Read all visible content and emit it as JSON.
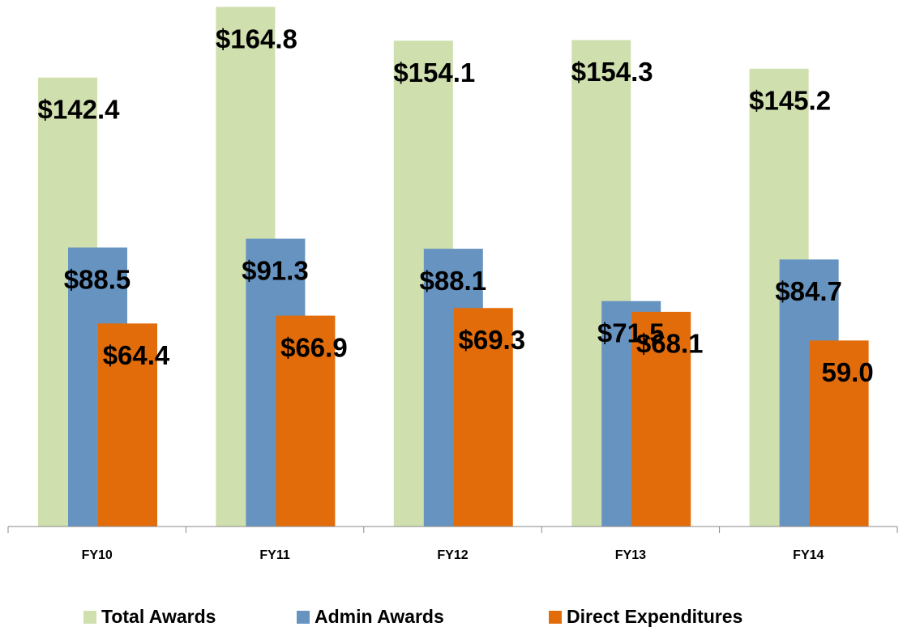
{
  "chart_data": {
    "type": "bar",
    "categories": [
      "FY10",
      "FY11",
      "FY12",
      "FY13",
      "FY14"
    ],
    "series": [
      {
        "name": "Total Awards",
        "color": "#cfdfae",
        "values": [
          142.4,
          164.8,
          154.1,
          154.3,
          145.2
        ],
        "value_labels": [
          "$142.4",
          "$164.8",
          "$154.1",
          "$154.3",
          "$145.2"
        ]
      },
      {
        "name": "Admin Awards",
        "color": "#6793c0",
        "values": [
          88.5,
          91.3,
          88.1,
          71.5,
          84.7
        ],
        "value_labels": [
          "$88.5",
          "$91.3",
          "$88.1",
          "$71.5",
          "$84.7"
        ]
      },
      {
        "name": "Direct Expenditures",
        "color": "#e36c0a",
        "values": [
          64.4,
          66.9,
          69.3,
          68.1,
          59.0
        ],
        "value_labels": [
          "$64.4",
          "$66.9",
          "$69.3",
          "$68.1",
          "59.0"
        ]
      }
    ],
    "ylim": [
      0,
      167
    ]
  }
}
